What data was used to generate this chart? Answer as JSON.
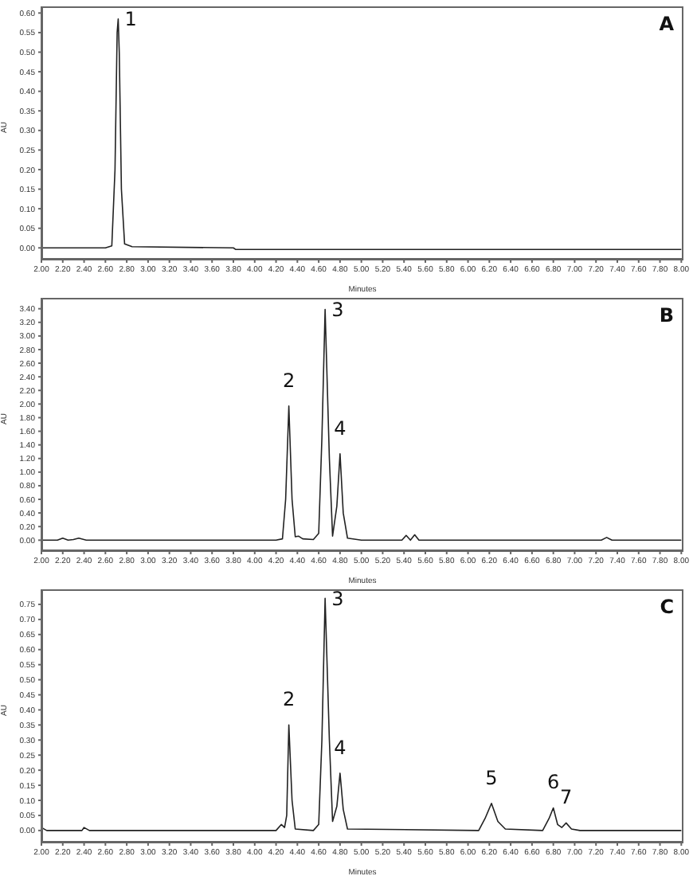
{
  "chart_data": [
    {
      "type": "line",
      "title": "A",
      "xlabel": "Minutes",
      "ylabel": "AU",
      "color": "#222222",
      "x": [
        2.0,
        2.6,
        2.66,
        2.69,
        2.71,
        2.72,
        2.73,
        2.75,
        2.78,
        2.85,
        3.8,
        3.82,
        8.0
      ],
      "values": [
        0,
        0,
        0.005,
        0.2,
        0.55,
        0.585,
        0.5,
        0.15,
        0.01,
        0.003,
        0,
        -0.004,
        -0.004
      ],
      "xlim": [
        2,
        8.02
      ],
      "ylim": [
        -0.03,
        0.617
      ],
      "xticks": [
        {
          "value": 2,
          "label": "2.00"
        },
        {
          "value": 2.2,
          "label": "2.20"
        },
        {
          "value": 2.4,
          "label": "2.40"
        },
        {
          "value": 2.6,
          "label": "2.60"
        },
        {
          "value": 2.8,
          "label": "2.80"
        },
        {
          "value": 3,
          "label": "3.00"
        },
        {
          "value": 3.2,
          "label": "3.20"
        },
        {
          "value": 3.4,
          "label": "3.40"
        },
        {
          "value": 3.6,
          "label": "3.60"
        },
        {
          "value": 3.8,
          "label": "3.80"
        },
        {
          "value": 4,
          "label": "4.00"
        },
        {
          "value": 4.2,
          "label": "4.20"
        },
        {
          "value": 4.4,
          "label": "4.40"
        },
        {
          "value": 4.6,
          "label": "4.60"
        },
        {
          "value": 4.8,
          "label": "4.80"
        },
        {
          "value": 5,
          "label": "5.00"
        },
        {
          "value": 5.2,
          "label": "5.20"
        },
        {
          "value": 5.4,
          "label": "5.40"
        },
        {
          "value": 5.6,
          "label": "5.60"
        },
        {
          "value": 5.8,
          "label": "5.80"
        },
        {
          "value": 6,
          "label": "6.00"
        },
        {
          "value": 6.2,
          "label": "6.20"
        },
        {
          "value": 6.4,
          "label": "6.40"
        },
        {
          "value": 6.6,
          "label": "6.60"
        },
        {
          "value": 6.8,
          "label": "6.80"
        },
        {
          "value": 7,
          "label": "7.00"
        },
        {
          "value": 7.2,
          "label": "7.20"
        },
        {
          "value": 7.4,
          "label": "7.40"
        },
        {
          "value": 7.6,
          "label": "7.60"
        },
        {
          "value": 7.8,
          "label": "7.80"
        },
        {
          "value": 8,
          "label": "8.00"
        }
      ],
      "yticks": [
        {
          "value": 0,
          "label": "0.00"
        },
        {
          "value": 0.05,
          "label": "0.05"
        },
        {
          "value": 0.1,
          "label": "0.10"
        },
        {
          "value": 0.15,
          "label": "0.15"
        },
        {
          "value": 0.2,
          "label": "0.20"
        },
        {
          "value": 0.25,
          "label": "0.25"
        },
        {
          "value": 0.3,
          "label": "0.30"
        },
        {
          "value": 0.35,
          "label": "0.35"
        },
        {
          "value": 0.4,
          "label": "0.40"
        },
        {
          "value": 0.45,
          "label": "0.45"
        },
        {
          "value": 0.5,
          "label": "0.50"
        },
        {
          "value": 0.55,
          "label": "0.55"
        },
        {
          "value": 0.6,
          "label": "0.60"
        }
      ],
      "annotations": [
        {
          "text": "1",
          "x": 2.72,
          "y": 0.585
        }
      ]
    },
    {
      "type": "line",
      "title": "B",
      "xlabel": "Minutes",
      "ylabel": "AU",
      "color": "#222222",
      "x": [
        2.0,
        2.15,
        2.2,
        2.25,
        2.3,
        2.35,
        2.42,
        3.0,
        4.2,
        4.26,
        4.29,
        4.32,
        4.35,
        4.38,
        4.41,
        4.45,
        4.55,
        4.6,
        4.63,
        4.66,
        4.7,
        4.73,
        4.77,
        4.8,
        4.83,
        4.87,
        5.0,
        5.38,
        5.42,
        5.46,
        5.5,
        5.54,
        7.25,
        7.3,
        7.35,
        8.0
      ],
      "values": [
        0,
        0,
        0.03,
        0,
        0.01,
        0.03,
        0,
        0,
        0,
        0.02,
        0.6,
        1.97,
        0.6,
        0.05,
        0.06,
        0.02,
        0.01,
        0.1,
        1.5,
        3.39,
        1.2,
        0.06,
        0.5,
        1.27,
        0.4,
        0.03,
        0,
        0,
        0.07,
        0,
        0.08,
        0,
        0,
        0.04,
        0,
        0
      ],
      "xlim": [
        2,
        8.02
      ],
      "ylim": [
        -0.16,
        3.56
      ],
      "xticks": [
        {
          "value": 2,
          "label": "2.00"
        },
        {
          "value": 2.2,
          "label": "2.20"
        },
        {
          "value": 2.4,
          "label": "2.40"
        },
        {
          "value": 2.6,
          "label": "2.60"
        },
        {
          "value": 2.8,
          "label": "2.80"
        },
        {
          "value": 3,
          "label": "3.00"
        },
        {
          "value": 3.2,
          "label": "3.20"
        },
        {
          "value": 3.4,
          "label": "3.40"
        },
        {
          "value": 3.6,
          "label": "3.60"
        },
        {
          "value": 3.8,
          "label": "3.80"
        },
        {
          "value": 4,
          "label": "4.00"
        },
        {
          "value": 4.2,
          "label": "4.20"
        },
        {
          "value": 4.4,
          "label": "4.40"
        },
        {
          "value": 4.6,
          "label": "4.60"
        },
        {
          "value": 4.8,
          "label": "4.80"
        },
        {
          "value": 5,
          "label": "5.00"
        },
        {
          "value": 5.2,
          "label": "5.20"
        },
        {
          "value": 5.4,
          "label": "5.40"
        },
        {
          "value": 5.6,
          "label": "5.60"
        },
        {
          "value": 5.8,
          "label": "5.80"
        },
        {
          "value": 6,
          "label": "6.00"
        },
        {
          "value": 6.2,
          "label": "6.20"
        },
        {
          "value": 6.4,
          "label": "6.40"
        },
        {
          "value": 6.6,
          "label": "6.60"
        },
        {
          "value": 6.8,
          "label": "6.80"
        },
        {
          "value": 7,
          "label": "7.00"
        },
        {
          "value": 7.2,
          "label": "7.20"
        },
        {
          "value": 7.4,
          "label": "7.40"
        },
        {
          "value": 7.6,
          "label": "7.60"
        },
        {
          "value": 7.8,
          "label": "7.80"
        },
        {
          "value": 8,
          "label": "8.00"
        }
      ],
      "yticks": [
        {
          "value": 0,
          "label": "0.00"
        },
        {
          "value": 0.2,
          "label": "0.20"
        },
        {
          "value": 0.4,
          "label": "0.40"
        },
        {
          "value": 0.6,
          "label": "0.60"
        },
        {
          "value": 0.8,
          "label": "0.80"
        },
        {
          "value": 1,
          "label": "1.00"
        },
        {
          "value": 1.2,
          "label": "1.20"
        },
        {
          "value": 1.4,
          "label": "1.40"
        },
        {
          "value": 1.6,
          "label": "1.60"
        },
        {
          "value": 1.8,
          "label": "1.80"
        },
        {
          "value": 2,
          "label": "2.00"
        },
        {
          "value": 2.2,
          "label": "2.20"
        },
        {
          "value": 2.4,
          "label": "2.40"
        },
        {
          "value": 2.6,
          "label": "2.60"
        },
        {
          "value": 2.8,
          "label": "2.80"
        },
        {
          "value": 3,
          "label": "3.00"
        },
        {
          "value": 3.2,
          "label": "3.20"
        },
        {
          "value": 3.4,
          "label": "3.40"
        }
      ],
      "annotations": [
        {
          "text": "2",
          "x": 4.32,
          "y": 1.97
        },
        {
          "text": "3",
          "x": 4.66,
          "y": 3.39
        },
        {
          "text": "4",
          "x": 4.8,
          "y": 1.27
        }
      ]
    },
    {
      "type": "line",
      "title": "C",
      "xlabel": "Minutes",
      "ylabel": "AU",
      "color": "#222222",
      "x": [
        2.0,
        2.05,
        2.38,
        2.4,
        2.45,
        4.2,
        4.25,
        4.28,
        4.3,
        4.32,
        4.35,
        4.38,
        4.55,
        4.6,
        4.63,
        4.66,
        4.7,
        4.73,
        4.77,
        4.8,
        4.83,
        4.87,
        6.1,
        6.16,
        6.22,
        6.28,
        6.35,
        6.7,
        6.76,
        6.8,
        6.84,
        6.88,
        6.92,
        6.97,
        7.05,
        8.0
      ],
      "values": [
        0.01,
        0,
        0,
        0.01,
        0,
        0,
        0.02,
        0.01,
        0.05,
        0.35,
        0.1,
        0.005,
        0,
        0.02,
        0.3,
        0.77,
        0.3,
        0.03,
        0.08,
        0.19,
        0.07,
        0.005,
        0,
        0.04,
        0.09,
        0.03,
        0.005,
        0,
        0.04,
        0.075,
        0.02,
        0.01,
        0.025,
        0.005,
        0,
        0
      ],
      "xlim": [
        2,
        8.02
      ],
      "ylim": [
        -0.04,
        0.8
      ],
      "xticks": [
        {
          "value": 2,
          "label": "2.00"
        },
        {
          "value": 2.2,
          "label": "2.20"
        },
        {
          "value": 2.4,
          "label": "2.40"
        },
        {
          "value": 2.6,
          "label": "2.60"
        },
        {
          "value": 2.8,
          "label": "2.80"
        },
        {
          "value": 3,
          "label": "3.00"
        },
        {
          "value": 3.2,
          "label": "3.20"
        },
        {
          "value": 3.4,
          "label": "3.40"
        },
        {
          "value": 3.6,
          "label": "3.60"
        },
        {
          "value": 3.8,
          "label": "3.80"
        },
        {
          "value": 4,
          "label": "4.00"
        },
        {
          "value": 4.2,
          "label": "4.20"
        },
        {
          "value": 4.4,
          "label": "4.40"
        },
        {
          "value": 4.6,
          "label": "4.60"
        },
        {
          "value": 4.8,
          "label": "4.80"
        },
        {
          "value": 5,
          "label": "5.00"
        },
        {
          "value": 5.2,
          "label": "5.20"
        },
        {
          "value": 5.4,
          "label": "5.40"
        },
        {
          "value": 5.6,
          "label": "5.60"
        },
        {
          "value": 5.8,
          "label": "5.80"
        },
        {
          "value": 6,
          "label": "6.00"
        },
        {
          "value": 6.2,
          "label": "6.20"
        },
        {
          "value": 6.4,
          "label": "6.40"
        },
        {
          "value": 6.6,
          "label": "6.60"
        },
        {
          "value": 6.8,
          "label": "6.80"
        },
        {
          "value": 7,
          "label": "7.00"
        },
        {
          "value": 7.2,
          "label": "7.20"
        },
        {
          "value": 7.4,
          "label": "7.40"
        },
        {
          "value": 7.6,
          "label": "7.60"
        },
        {
          "value": 7.8,
          "label": "7.80"
        },
        {
          "value": 8,
          "label": "8.00"
        }
      ],
      "yticks": [
        {
          "value": 0,
          "label": "0.00"
        },
        {
          "value": 0.05,
          "label": "0.05"
        },
        {
          "value": 0.1,
          "label": "0.10"
        },
        {
          "value": 0.15,
          "label": "0.15"
        },
        {
          "value": 0.2,
          "label": "0.20"
        },
        {
          "value": 0.25,
          "label": "0.25"
        },
        {
          "value": 0.3,
          "label": "0.30"
        },
        {
          "value": 0.35,
          "label": "0.35"
        },
        {
          "value": 0.4,
          "label": "0.40"
        },
        {
          "value": 0.45,
          "label": "0.45"
        },
        {
          "value": 0.5,
          "label": "0.50"
        },
        {
          "value": 0.55,
          "label": "0.55"
        },
        {
          "value": 0.6,
          "label": "0.60"
        },
        {
          "value": 0.65,
          "label": "0.65"
        },
        {
          "value": 0.7,
          "label": "0.70"
        },
        {
          "value": 0.75,
          "label": "0.75"
        }
      ],
      "annotations": [
        {
          "text": "2",
          "x": 4.32,
          "y": 0.35
        },
        {
          "text": "3",
          "x": 4.66,
          "y": 0.77
        },
        {
          "text": "4",
          "x": 4.8,
          "y": 0.19
        },
        {
          "text": "5",
          "x": 6.22,
          "y": 0.09
        },
        {
          "text": "6",
          "x": 6.8,
          "y": 0.075
        },
        {
          "text": "7",
          "x": 6.92,
          "y": 0.025
        }
      ]
    }
  ]
}
